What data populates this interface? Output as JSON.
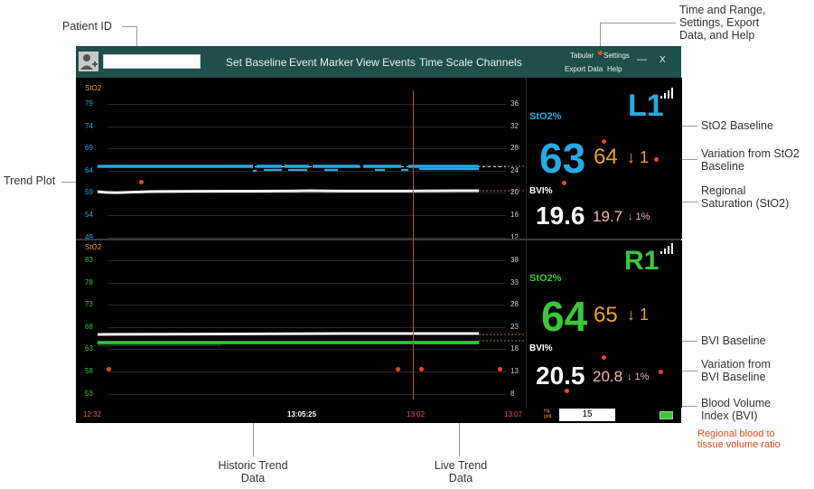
{
  "annotations": {
    "patient_id": "Patient ID",
    "time_range": [
      "Time and Range,",
      "Settings, Export",
      "Data, and Help"
    ],
    "trend_plot": "Trend Plot",
    "sto2_baseline": "StO2 Baseline",
    "variation_sto2": [
      "Variation from StO2",
      "Baseline"
    ],
    "regional_saturation": [
      "Regional",
      "Saturation (StO2)"
    ],
    "bvi_baseline": "BVI Baseline",
    "variation_bvi": [
      "Variation from",
      "BVI Baseline"
    ],
    "bvi": [
      "Blood Volume",
      "Index (BVI)"
    ],
    "bvi_note": [
      "Regional blood to",
      "tissue volume ratio"
    ],
    "historic": [
      "Historic Trend",
      "Data"
    ],
    "live": [
      "Live Trend",
      "Data"
    ]
  },
  "toolbar": {
    "set_baseline": "Set Baseline",
    "event_marker": "Event Marker",
    "view_events": "View Events",
    "time_scale": "Time Scale",
    "channels": "Channels",
    "tabular": "Tabular",
    "settings": "Settings",
    "export_data": "Export Data",
    "help": "Help",
    "minimize": "—",
    "close": "X",
    "patient_input_value": ""
  },
  "plot_top": {
    "label": "StO2",
    "left_ticks": [
      "79",
      "74",
      "69",
      "64",
      "59",
      "54",
      "49"
    ],
    "right_ticks": [
      "36",
      "32",
      "28",
      "24",
      "20",
      "16",
      "12"
    ]
  },
  "plot_bottom": {
    "label": "StO2",
    "left_ticks": [
      "83",
      "78",
      "73",
      "68",
      "63",
      "58",
      "53"
    ],
    "right_ticks": [
      "38",
      "33",
      "28",
      "23",
      "18",
      "13",
      "8"
    ]
  },
  "time_axis": {
    "start": "12:32",
    "center": "13:05:25",
    "live_start": "13:02",
    "end": "13:07"
  },
  "channel_l1": {
    "name": "L1",
    "sto2_label": "StO2%",
    "sto2": "63",
    "sto2_baseline": "64",
    "sto2_variation": "↓ 1",
    "bvi_label": "BVI%",
    "bvi": "19.6",
    "bvi_baseline": "19.7",
    "bvi_variation": "↓ 1%"
  },
  "channel_r1": {
    "name": "R1",
    "sto2_label": "StO2%",
    "sto2": "64",
    "sto2_baseline": "65",
    "sto2_variation": "↓ 1",
    "bvi_label": "BVI%",
    "bvi": "20.5",
    "bvi_baseline": "20.8",
    "bvi_variation": "↓ 1%"
  },
  "hgb": {
    "label_top": "Hg",
    "label_bottom": "g/dL",
    "value": "15"
  },
  "colors": {
    "toolbar": "#1e4f4a",
    "l1_accent": "#29a9e1",
    "r1_accent": "#3cc63c",
    "baseline": "#e8a23a",
    "bvi_baseline": "#f2b6b6",
    "annotation_marker": "#e8491d"
  }
}
